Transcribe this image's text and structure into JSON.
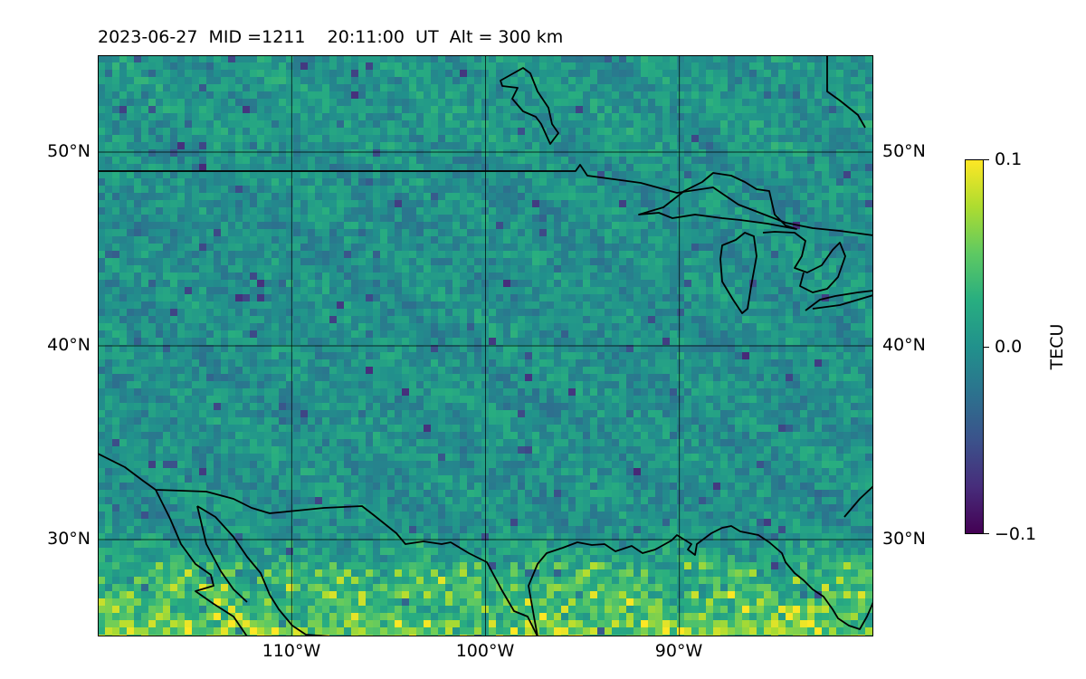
{
  "title": {
    "date": "2023-06-27",
    "mid": "MID =1211",
    "time": "20:11:00  UT",
    "alt": "Alt = 300 km"
  },
  "map": {
    "lon_range": [
      -120,
      -80
    ],
    "lat_range": [
      25,
      55
    ],
    "lat_ticks": [
      {
        "value": 30,
        "label": "30°N"
      },
      {
        "value": 40,
        "label": "40°N"
      },
      {
        "value": 50,
        "label": "50°N"
      }
    ],
    "lon_ticks": [
      {
        "value": -110,
        "label": "110°W"
      },
      {
        "value": -100,
        "label": "100°W"
      },
      {
        "value": -90,
        "label": "90°W"
      }
    ],
    "grid": true
  },
  "colorbar": {
    "label": "TECU",
    "min": -0.1,
    "max": 0.1,
    "ticks": [
      {
        "value": 0.1,
        "label": "0.1"
      },
      {
        "value": 0.0,
        "label": "0.0"
      },
      {
        "value": -0.1,
        "label": "−0.1"
      }
    ],
    "colormap": [
      "#440154",
      "#472d7b",
      "#3b528b",
      "#2c728e",
      "#21918c",
      "#28ae80",
      "#5ec962",
      "#addc30",
      "#fde725"
    ]
  }
}
